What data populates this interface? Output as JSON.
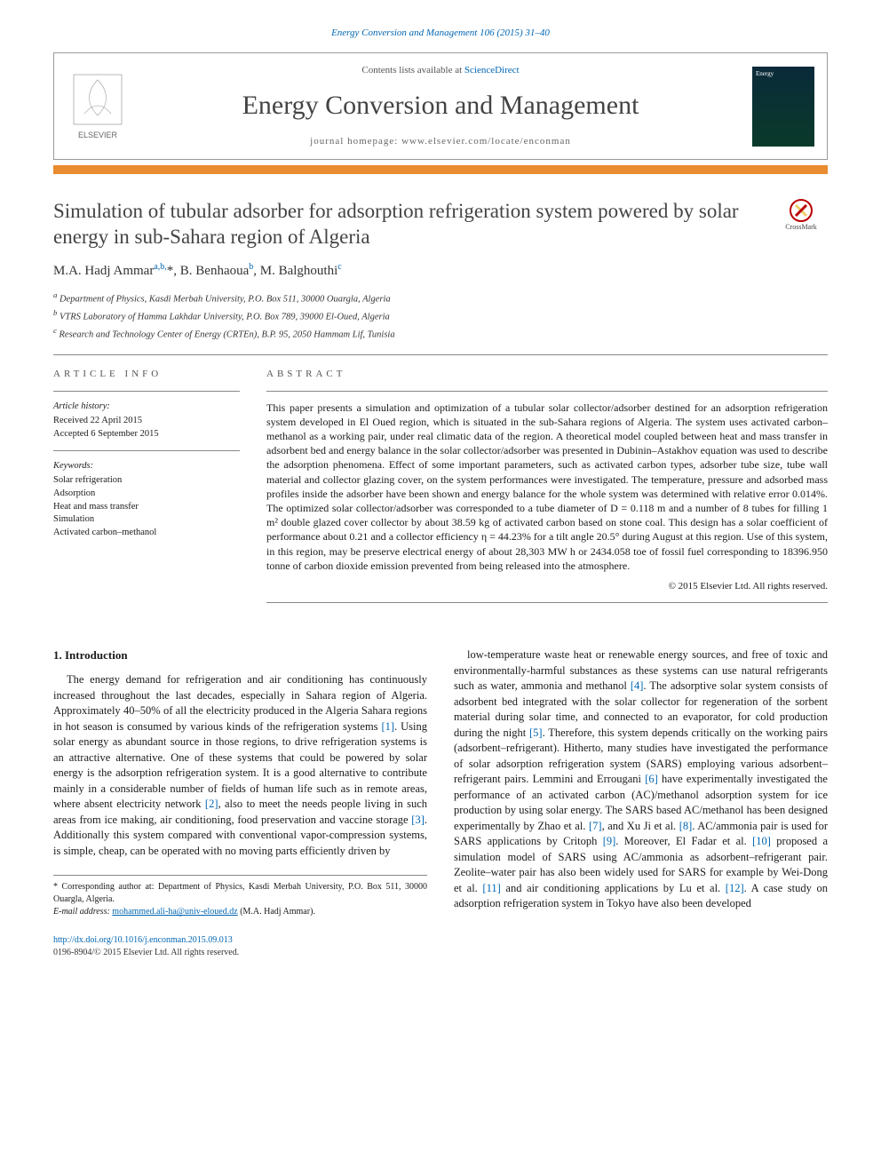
{
  "colors": {
    "link": "#0066b3",
    "accent_bar": "#e98b2f",
    "text": "#1a1a1a",
    "muted": "#555555",
    "rule": "#888888"
  },
  "typography": {
    "body_font": "Georgia, 'Times New Roman', serif",
    "title_fontsize_pt": 17,
    "journal_name_fontsize_pt": 22,
    "body_fontsize_pt": 9.5,
    "abstract_fontsize_pt": 9
  },
  "header": {
    "journal_ref": "Energy Conversion and Management 106 (2015) 31–40",
    "contents_prefix": "Contents lists available at ",
    "contents_link": "ScienceDirect",
    "journal_name": "Energy Conversion and Management",
    "homepage_prefix": "journal homepage: ",
    "homepage_url": "www.elsevier.com/locate/enconman",
    "publisher_logo_label": "ELSEVIER"
  },
  "crossmark": {
    "label": "CrossMark"
  },
  "article": {
    "title": "Simulation of tubular adsorber for adsorption refrigeration system powered by solar energy in sub-Sahara region of Algeria",
    "authors_html": "M.A. Hadj Ammar",
    "authors": [
      {
        "name": "M.A. Hadj Ammar",
        "sup": "a,b,*"
      },
      {
        "name": "B. Benhaoua",
        "sup": "b"
      },
      {
        "name": "M. Balghouthi",
        "sup": "c"
      }
    ],
    "affiliations": [
      {
        "sup": "a",
        "text": "Department of Physics, Kasdi Merbah University, P.O. Box 511, 30000 Ouargla, Algeria"
      },
      {
        "sup": "b",
        "text": "VTRS Laboratory of Hamma Lakhdar University, P.O. Box 789, 39000 El-Oued, Algeria"
      },
      {
        "sup": "c",
        "text": "Research and Technology Center of Energy (CRTEn), B.P. 95, 2050 Hammam Lif, Tunisia"
      }
    ]
  },
  "article_info": {
    "heading": "ARTICLE INFO",
    "history_label": "Article history:",
    "received": "Received 22 April 2015",
    "accepted": "Accepted 6 September 2015",
    "keywords_label": "Keywords:",
    "keywords": [
      "Solar refrigeration",
      "Adsorption",
      "Heat and mass transfer",
      "Simulation",
      "Activated carbon–methanol"
    ]
  },
  "abstract": {
    "heading": "ABSTRACT",
    "text": "This paper presents a simulation and optimization of a tubular solar collector/adsorber destined for an adsorption refrigeration system developed in El Oued region, which is situated in the sub-Sahara regions of Algeria. The system uses activated carbon–methanol as a working pair, under real climatic data of the region. A theoretical model coupled between heat and mass transfer in adsorbent bed and energy balance in the solar collector/adsorber was presented in Dubinin–Astakhov equation was used to describe the adsorption phenomena. Effect of some important parameters, such as activated carbon types, adsorber tube size, tube wall material and collector glazing cover, on the system performances were investigated. The temperature, pressure and adsorbed mass profiles inside the adsorber have been shown and energy balance for the whole system was determined with relative error 0.014%. The optimized solar collector/adsorber was corresponded to a tube diameter of D = 0.118 m and a number of 8 tubes for filling 1 m² double glazed cover collector by about 38.59 kg of activated carbon based on stone coal. This design has a solar coefficient of performance about 0.21 and a collector efficiency η = 44.23% for a tilt angle 20.5° during August at this region. Use of this system, in this region, may be preserve electrical energy of about 28,303 MW h or 2434.058 toe of fossil fuel corresponding to 18396.950 tonne of carbon dioxide emission prevented from being released into the atmosphere.",
    "copyright": "© 2015 Elsevier Ltd. All rights reserved."
  },
  "body": {
    "section_number": "1.",
    "section_title": "Introduction",
    "col1": "The energy demand for refrigeration and air conditioning has continuously increased throughout the last decades, especially in Sahara region of Algeria. Approximately 40–50% of all the electricity produced in the Algeria Sahara regions in hot season is consumed by various kinds of the refrigeration systems [1]. Using solar energy as abundant source in those regions, to drive refrigeration systems is an attractive alternative. One of these systems that could be powered by solar energy is the adsorption refrigeration system. It is a good alternative to contribute mainly in a considerable number of fields of human life such as in remote areas, where absent electricity network [2], also to meet the needs people living in such areas from ice making, air conditioning, food preservation and vaccine storage [3]. Additionally this system compared with conventional vapor-compression systems, is simple, cheap, can be operated with no moving parts efficiently driven by",
    "col2": "low-temperature waste heat or renewable energy sources, and free of toxic and environmentally-harmful substances as these systems can use natural refrigerants such as water, ammonia and methanol [4]. The adsorptive solar system consists of adsorbent bed integrated with the solar collector for regeneration of the sorbent material during solar time, and connected to an evaporator, for cold production during the night [5]. Therefore, this system depends critically on the working pairs (adsorbent–refrigerant). Hitherto, many studies have investigated the performance of solar adsorption refrigeration system (SARS) employing various adsorbent–refrigerant pairs. Lemmini and Errougani [6] have experimentally investigated the performance of an activated carbon (AC)/methanol adsorption system for ice production by using solar energy. The SARS based AC/methanol has been designed experimentally by Zhao et al. [7], and Xu Ji et al. [8]. AC/ammonia pair is used for SARS applications by Critoph [9]. Moreover, El Fadar et al. [10] proposed a simulation model of SARS using AC/ammonia as adsorbent–refrigerant pair. Zeolite–water pair has also been widely used for SARS for example by Wei-Dong et al. [11] and air conditioning applications by Lu et al. [12]. A case study on adsorption refrigeration system in Tokyo have also been developed",
    "refs_in_text": [
      "[1]",
      "[2]",
      "[3]",
      "[4]",
      "[5]",
      "[6]",
      "[7]",
      "[8]",
      "[9]",
      "[10]",
      "[11]",
      "[12]"
    ]
  },
  "footnote": {
    "corresponding": "* Corresponding author at: Department of Physics, Kasdi Merbah University, P.O. Box 511, 30000 Ouargla, Algeria.",
    "email_label": "E-mail address: ",
    "email": "mohammed.ali-ha@univ-eloued.dz",
    "email_owner": " (M.A. Hadj Ammar)."
  },
  "footer": {
    "doi_url": "http://dx.doi.org/10.1016/j.enconman.2015.09.013",
    "issn_line": "0196-8904/© 2015 Elsevier Ltd. All rights reserved."
  }
}
